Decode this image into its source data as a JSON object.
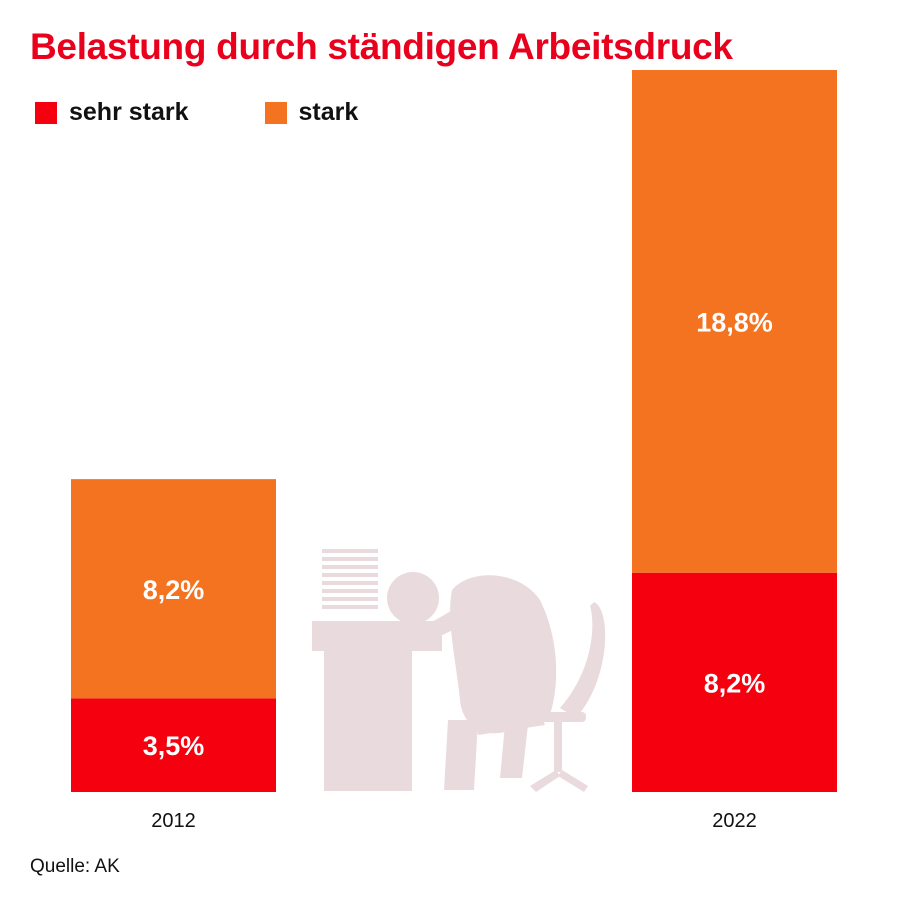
{
  "title": "Belastung durch ständigen Arbeitsdruck",
  "legend": [
    {
      "label": "sehr stark",
      "color": "#f5000f"
    },
    {
      "label": "stark",
      "color": "#f47320"
    }
  ],
  "source": "Quelle: AK",
  "illustration": {
    "name": "exhausted-worker-at-desk-icon",
    "color": "#e9dadd"
  },
  "chart_data": {
    "type": "bar",
    "stacked": true,
    "title": "Belastung durch ständigen Arbeitsdruck",
    "categories": [
      "2012",
      "2022"
    ],
    "series": [
      {
        "name": "sehr stark",
        "color": "#f5000f",
        "values": [
          3.5,
          8.2
        ],
        "labels": [
          "3,5%",
          "8,2%"
        ]
      },
      {
        "name": "stark",
        "color": "#f47320",
        "values": [
          8.2,
          18.8
        ],
        "labels": [
          "8,2%",
          "18,8%"
        ]
      }
    ],
    "ylim": [
      0,
      27
    ],
    "grid": false,
    "legend_position": "top-left"
  }
}
